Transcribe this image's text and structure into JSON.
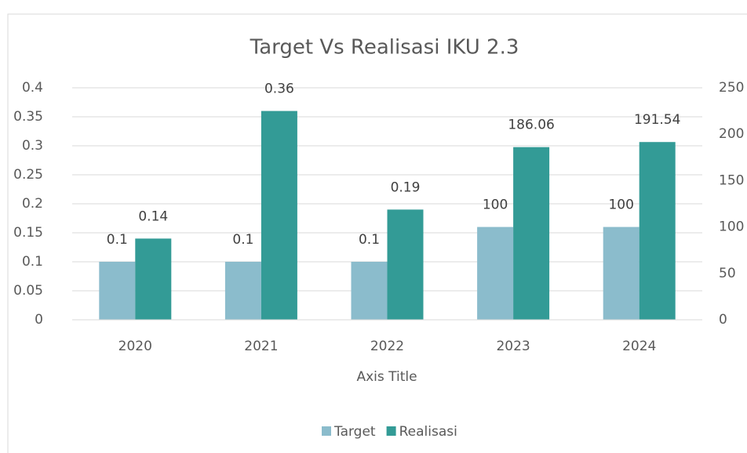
{
  "chart_data": {
    "type": "bar",
    "title": "Target Vs Realisasi IKU 2.3",
    "x_label": "Axis Title",
    "categories": [
      "2020",
      "2021",
      "2022",
      "2023",
      "2024"
    ],
    "series": [
      {
        "name": "Target",
        "color": "#8bbccc",
        "values": [
          0.1,
          0.1,
          0.1,
          100,
          100
        ],
        "axes": [
          "y",
          "y",
          "y",
          "y2",
          "y2"
        ]
      },
      {
        "name": "Realisasi",
        "color": "#339b96",
        "values": [
          0.14,
          0.36,
          0.19,
          186.06,
          191.54
        ],
        "axes": [
          "y",
          "y",
          "y",
          "y2",
          "y2"
        ]
      }
    ],
    "ylim": [
      0,
      0.4
    ],
    "yticks": [
      0,
      0.05,
      0.1,
      0.15,
      0.2,
      0.25,
      0.3,
      0.35,
      0.4
    ],
    "y2lim": [
      0,
      250
    ],
    "y2ticks": [
      0,
      50,
      100,
      150,
      200,
      250
    ],
    "grid": true,
    "legend": "bottom"
  }
}
